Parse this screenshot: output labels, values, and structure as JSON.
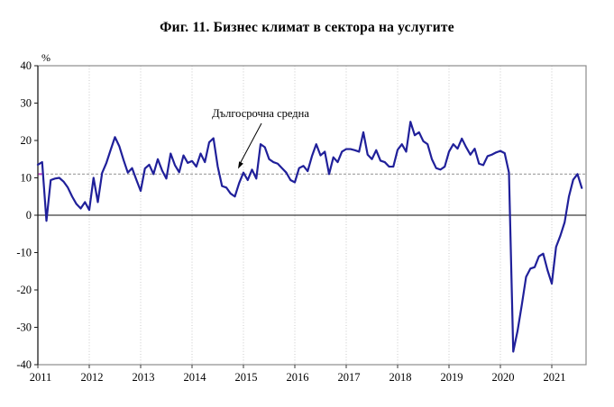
{
  "chart_data": {
    "type": "line",
    "title": "Фиг. 11. Бизнес климат в сектора на услугите",
    "xlabel": "",
    "ylabel": "%",
    "ylim": [
      -40,
      40
    ],
    "y_ticks": [
      40,
      30,
      20,
      10,
      0,
      -10,
      -20,
      -30,
      -40
    ],
    "x_tick_labels": [
      "2011",
      "2012",
      "2013",
      "2014",
      "2015",
      "2016",
      "2017",
      "2018",
      "2019",
      "2020",
      "2021"
    ],
    "points_per_year": 12,
    "grid": "vertical-dotted",
    "legend_position": "none",
    "series": [
      {
        "name": "Бизнес климат в сектора на услугите",
        "color": "#20209A",
        "values": [
          13.5,
          14.2,
          -1.5,
          9.4,
          9.8,
          10.0,
          9.0,
          7.4,
          5.0,
          3.0,
          1.8,
          3.5,
          1.4,
          10.0,
          3.5,
          11.3,
          14.0,
          17.5,
          20.9,
          18.5,
          14.8,
          11.4,
          12.6,
          9.5,
          6.5,
          12.5,
          13.5,
          11.0,
          15.0,
          12.0,
          9.8,
          16.5,
          13.4,
          11.5,
          16.0,
          14.0,
          14.5,
          13.0,
          16.5,
          14.2,
          19.5,
          20.6,
          13.0,
          7.8,
          7.4,
          5.8,
          5.0,
          8.6,
          11.4,
          9.4,
          12.2,
          9.8,
          19.0,
          18.2,
          15.0,
          14.2,
          13.8,
          12.6,
          11.4,
          9.4,
          8.8,
          12.6,
          13.2,
          11.8,
          15.8,
          19.0,
          16.0,
          17.0,
          11.0,
          15.5,
          14.2,
          17.0,
          17.7,
          17.7,
          17.4,
          17.0,
          22.2,
          16.2,
          15.0,
          17.4,
          14.6,
          14.2,
          13.0,
          13.0,
          17.5,
          19.0,
          17.0,
          25.0,
          21.4,
          22.2,
          19.8,
          19.0,
          15.0,
          12.6,
          12.2,
          13.0,
          17.0,
          19.0,
          17.8,
          20.5,
          18.2,
          16.2,
          17.8,
          13.8,
          13.4,
          15.8,
          16.2,
          16.8,
          17.2,
          16.6,
          11.4,
          -36.5,
          -31.0,
          -24.0,
          -16.5,
          -14.3,
          -13.9,
          -11.0,
          -10.3,
          -14.7,
          -18.3,
          -8.5,
          -5.5,
          -1.9,
          5.0,
          9.5,
          11.0,
          7.3
        ]
      }
    ],
    "reference_line": {
      "label": "Дългосрочна средна",
      "value": 11,
      "color": "#A8A8A8",
      "start_marker_color": "#C544C5"
    },
    "colors": {
      "series_line": "#20209A",
      "zero_line": "#3C3C3C",
      "plot_border": "#8C8C8C",
      "gridline": "#C9C9C9",
      "text": "#000000"
    }
  }
}
